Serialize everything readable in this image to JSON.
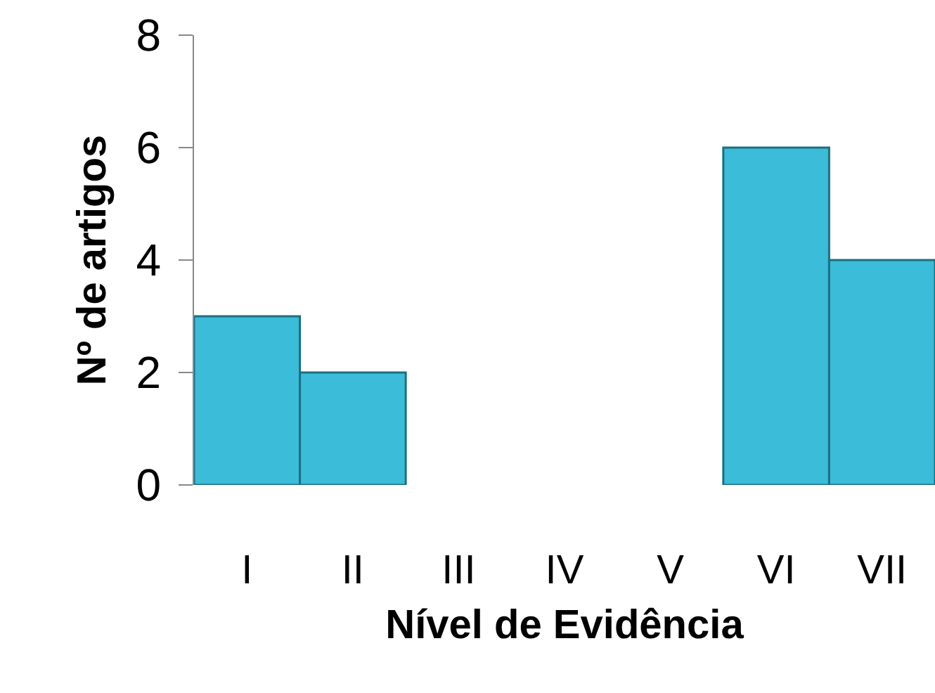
{
  "chart_data": {
    "type": "bar",
    "xlabel": "Nível de Evidência",
    "ylabel": "Nº de artigos",
    "categories": [
      "I",
      "II",
      "III",
      "IV",
      "V",
      "VI",
      "VII"
    ],
    "values": [
      3,
      2,
      0,
      0,
      0,
      6,
      4
    ],
    "color": "#3bbcd9",
    "ylim": [
      0,
      8
    ],
    "yticks": [
      0,
      2,
      4,
      6,
      8
    ],
    "grid": false
  }
}
